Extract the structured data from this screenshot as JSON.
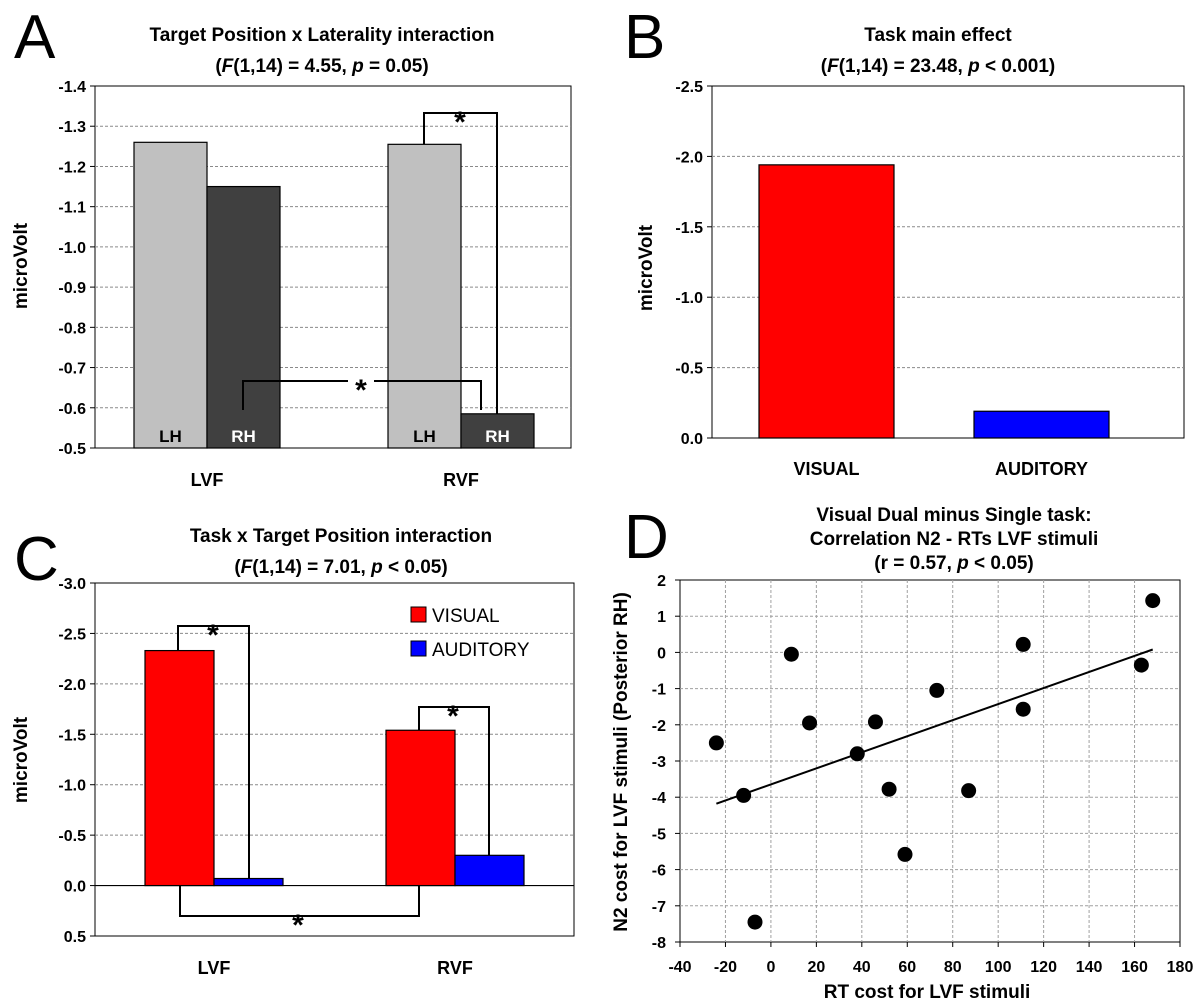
{
  "figure": {
    "panels": {
      "A": {
        "letter": "A",
        "title_line1": "Target Position x Laterality interaction",
        "title_stat": {
          "F": "F",
          "mid": "(1,14) = 4.55, ",
          "p": "p",
          "end": " = 0.05)",
          "open": "("
        },
        "significance_marker": "*"
      },
      "B": {
        "letter": "B",
        "title_line1": "Task main effect",
        "title_stat": {
          "F": "F",
          "mid": "(1,14) = 23.48, ",
          "p": "p",
          "end": " < 0.001)",
          "open": "("
        }
      },
      "C": {
        "letter": "C",
        "title_line1": "Task x Target Position interaction",
        "title_stat": {
          "F": "F",
          "mid": "(1,14) = 7.01, ",
          "p": "p",
          "end": " < 0.05)",
          "open": "("
        },
        "significance_marker": "*"
      },
      "D": {
        "letter": "D",
        "title_line1": "Visual Dual minus Single task:",
        "title_line2": "Correlation N2 - RTs LVF stimuli",
        "title_stat": {
          "open": "(r = 0.57, ",
          "p": "p",
          "end": " < 0.05)"
        }
      }
    }
  },
  "chart_data": [
    {
      "panel": "A",
      "type": "bar",
      "categories": [
        "LVF",
        "RVF"
      ],
      "series": [
        {
          "name": "LH",
          "color": "#c0c0c0",
          "values": [
            -1.26,
            -1.255
          ]
        },
        {
          "name": "RH",
          "color": "#404040",
          "values": [
            -1.15,
            -0.585
          ]
        }
      ],
      "bar_labels": [
        "LH",
        "RH"
      ],
      "ylabel": "microVolt",
      "y_inverted": true,
      "ylim": [
        -0.5,
        -1.4
      ],
      "yticks": [
        "-1.4",
        "-1.3",
        "-1.2",
        "-1.1",
        "-1.0",
        "-0.9",
        "-0.8",
        "-0.7",
        "-0.6",
        "-0.5"
      ],
      "grid": true
    },
    {
      "panel": "B",
      "type": "bar",
      "categories": [
        "VISUAL",
        "AUDITORY"
      ],
      "values": [
        -1.94,
        -0.19
      ],
      "colors": [
        "#ff0000",
        "#0000ff"
      ],
      "ylabel": "microVolt",
      "y_inverted": true,
      "ylim": [
        0.0,
        -2.5
      ],
      "yticks": [
        "-2.5",
        "-2.0",
        "-1.5",
        "-1.0",
        "-0.5",
        "0.0"
      ],
      "grid": true
    },
    {
      "panel": "C",
      "type": "bar",
      "categories": [
        "LVF",
        "RVF"
      ],
      "series": [
        {
          "name": "VISUAL",
          "color": "#ff0000",
          "values": [
            -2.33,
            -1.54
          ]
        },
        {
          "name": "AUDITORY",
          "color": "#0000ff",
          "values": [
            -0.07,
            -0.3
          ]
        }
      ],
      "ylabel": "microVolt",
      "y_inverted": true,
      "ylim": [
        0.5,
        -3.0
      ],
      "yticks": [
        "-3.0",
        "-2.5",
        "-2.0",
        "-1.5",
        "-1.0",
        "-0.5",
        "0.0",
        "0.5"
      ],
      "legend_position": "top-right",
      "grid": true
    },
    {
      "panel": "D",
      "type": "scatter",
      "xlabel": "RT cost for LVF stimuli",
      "ylabel": "N2 cost for LVF stimuli (Posterior RH)",
      "xlim": [
        -40,
        180
      ],
      "ylim": [
        -8,
        2
      ],
      "xticks": [
        "-40",
        "-20",
        "0",
        "20",
        "40",
        "60",
        "80",
        "100",
        "120",
        "140",
        "160",
        "180"
      ],
      "yticks": [
        "2",
        "1",
        "0",
        "-1",
        "-2",
        "-3",
        "-4",
        "-5",
        "-6",
        "-7",
        "-8"
      ],
      "points": [
        {
          "x": -24,
          "y": -2.5
        },
        {
          "x": -12,
          "y": -3.95
        },
        {
          "x": -7,
          "y": -7.45
        },
        {
          "x": 9,
          "y": -0.05
        },
        {
          "x": 17,
          "y": -1.95
        },
        {
          "x": 38,
          "y": -2.8
        },
        {
          "x": 46,
          "y": -1.92
        },
        {
          "x": 52,
          "y": -3.78
        },
        {
          "x": 59,
          "y": -5.58
        },
        {
          "x": 73,
          "y": -1.05
        },
        {
          "x": 87,
          "y": -3.82
        },
        {
          "x": 111,
          "y": 0.22
        },
        {
          "x": 111,
          "y": -1.57
        },
        {
          "x": 163,
          "y": -0.35
        },
        {
          "x": 168,
          "y": 1.43
        }
      ],
      "trendline": {
        "x": [
          -24,
          168
        ],
        "y": [
          -4.18,
          0.08
        ]
      },
      "grid": true
    }
  ]
}
